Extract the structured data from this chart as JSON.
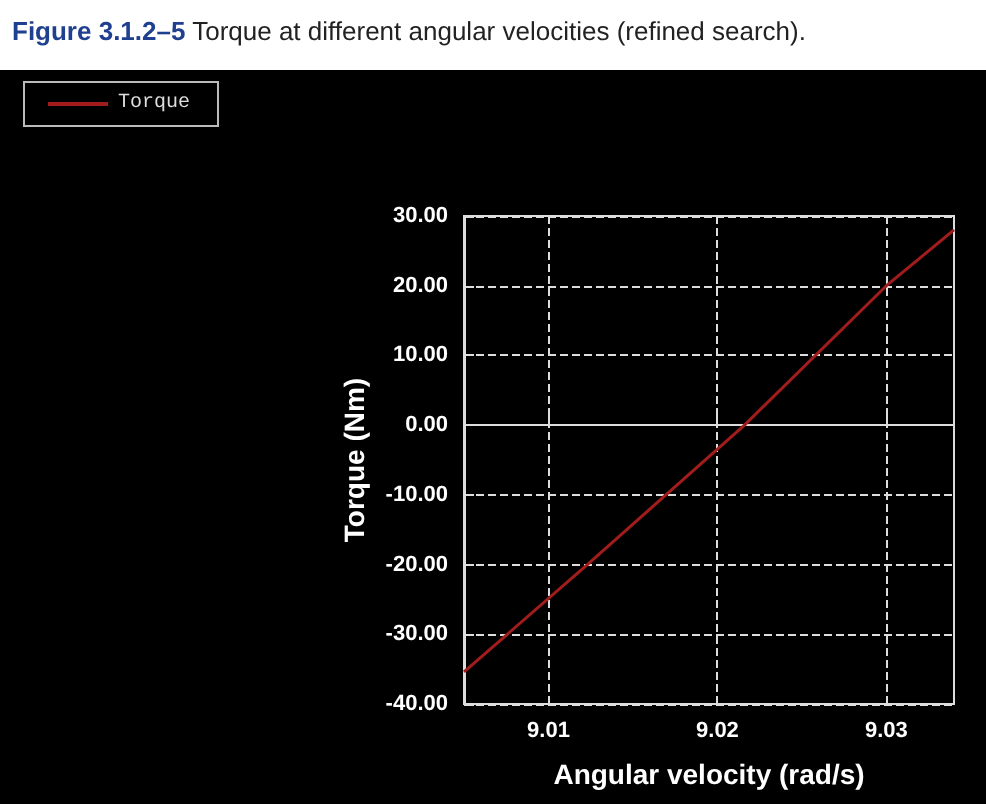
{
  "chart_data": {
    "type": "line",
    "title": "Figure 3.1.2–5 Torque at different angular velocities (refined search).",
    "xlabel": "Angular velocity (rad/s)",
    "ylabel": "Torque (Nm)",
    "series": [
      {
        "name": "Torque",
        "color": "#a31c1c",
        "x": [
          9.005,
          9.0123,
          9.0216,
          9.03,
          9.034
        ],
        "values": [
          -35.4,
          -20,
          0,
          20,
          28
        ]
      }
    ],
    "xlim": [
      9.005,
      9.034
    ],
    "xticks": [
      9.01,
      9.02,
      9.03
    ],
    "ylim": [
      -40,
      30
    ],
    "yticks": [
      {
        "value": -40,
        "label": "-40.00"
      },
      {
        "value": -30,
        "label": "-30.00"
      },
      {
        "value": -20,
        "label": "-20.00"
      },
      {
        "value": -10,
        "label": "-10.00"
      },
      {
        "value": 0,
        "label": "0.00"
      },
      {
        "value": 10,
        "label": "10.00"
      },
      {
        "value": 20,
        "label": "20.00"
      },
      {
        "value": 30,
        "label": "30.00"
      }
    ],
    "grid": true,
    "legend": "top left",
    "marker": "none",
    "line_style": "solid"
  }
}
